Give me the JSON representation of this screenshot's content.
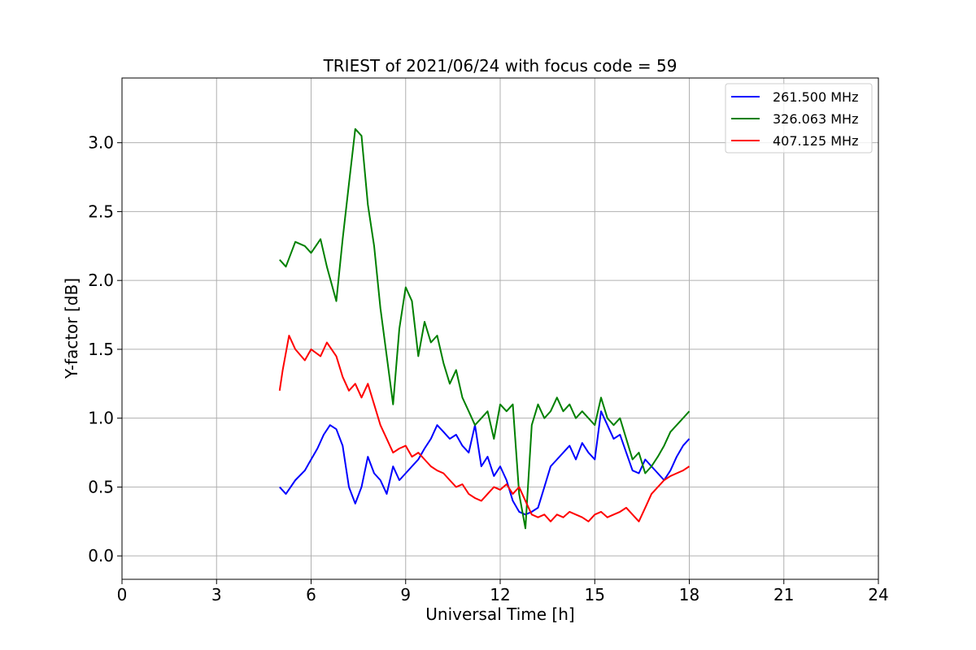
{
  "chart_data": {
    "type": "line",
    "title": "TRIEST of 2021/06/24 with focus code = 59",
    "xlabel": "Universal Time [h]",
    "ylabel": "Y-factor [dB]",
    "xlim": [
      0,
      24
    ],
    "ylim": [
      -0.17,
      3.47
    ],
    "xticks": [
      0,
      3,
      6,
      9,
      12,
      15,
      18,
      21,
      24
    ],
    "xtick_labels": [
      "0",
      "3",
      "6",
      "9",
      "12",
      "15",
      "18",
      "21",
      "24"
    ],
    "yticks": [
      0.0,
      0.5,
      1.0,
      1.5,
      2.0,
      2.5,
      3.0
    ],
    "ytick_labels": [
      "0.0",
      "0.5",
      "1.0",
      "1.5",
      "2.0",
      "2.5",
      "3.0"
    ],
    "grid": true,
    "legend_position": "top-right",
    "series": [
      {
        "name": "261.500 MHz",
        "color": "#0000ff",
        "x": [
          5.0,
          5.2,
          5.5,
          5.8,
          6.0,
          6.2,
          6.4,
          6.6,
          6.8,
          7.0,
          7.2,
          7.4,
          7.6,
          7.8,
          8.0,
          8.2,
          8.4,
          8.6,
          8.8,
          9.0,
          9.2,
          9.4,
          9.6,
          9.8,
          10.0,
          10.2,
          10.4,
          10.6,
          10.8,
          11.0,
          11.2,
          11.4,
          11.6,
          11.8,
          12.0,
          12.2,
          12.4,
          12.6,
          12.8,
          13.0,
          13.2,
          13.4,
          13.6,
          13.8,
          14.0,
          14.2,
          14.4,
          14.6,
          14.8,
          15.0,
          15.2,
          15.4,
          15.6,
          15.8,
          16.0,
          16.2,
          16.4,
          16.6,
          16.8,
          17.0,
          17.2,
          17.4,
          17.6,
          17.8,
          18.0
        ],
        "y": [
          0.5,
          0.45,
          0.55,
          0.62,
          0.7,
          0.78,
          0.88,
          0.95,
          0.92,
          0.8,
          0.5,
          0.38,
          0.5,
          0.72,
          0.6,
          0.55,
          0.45,
          0.65,
          0.55,
          0.6,
          0.65,
          0.7,
          0.78,
          0.85,
          0.95,
          0.9,
          0.85,
          0.88,
          0.8,
          0.75,
          0.95,
          0.65,
          0.72,
          0.58,
          0.65,
          0.55,
          0.4,
          0.32,
          0.3,
          0.32,
          0.35,
          0.5,
          0.65,
          0.7,
          0.75,
          0.8,
          0.7,
          0.82,
          0.75,
          0.7,
          1.05,
          0.95,
          0.85,
          0.88,
          0.75,
          0.62,
          0.6,
          0.7,
          0.65,
          0.6,
          0.55,
          0.62,
          0.72,
          0.8,
          0.85
        ]
      },
      {
        "name": "326.063 MHz",
        "color": "#008000",
        "x": [
          5.0,
          5.2,
          5.5,
          5.8,
          6.0,
          6.3,
          6.5,
          6.8,
          7.0,
          7.2,
          7.4,
          7.6,
          7.8,
          8.0,
          8.2,
          8.4,
          8.6,
          8.8,
          9.0,
          9.2,
          9.4,
          9.6,
          9.8,
          10.0,
          10.2,
          10.4,
          10.6,
          10.8,
          11.0,
          11.2,
          11.4,
          11.6,
          11.8,
          12.0,
          12.2,
          12.4,
          12.6,
          12.8,
          13.0,
          13.2,
          13.4,
          13.6,
          13.8,
          14.0,
          14.2,
          14.4,
          14.6,
          14.8,
          15.0,
          15.2,
          15.4,
          15.6,
          15.8,
          16.0,
          16.2,
          16.4,
          16.6,
          16.8,
          17.0,
          17.2,
          17.4,
          17.6,
          17.8,
          18.0
        ],
        "y": [
          2.15,
          2.1,
          2.28,
          2.25,
          2.2,
          2.3,
          2.1,
          1.85,
          2.3,
          2.7,
          3.1,
          3.05,
          2.55,
          2.25,
          1.8,
          1.45,
          1.1,
          1.65,
          1.95,
          1.85,
          1.45,
          1.7,
          1.55,
          1.6,
          1.4,
          1.25,
          1.35,
          1.15,
          1.05,
          0.95,
          1.0,
          1.05,
          0.85,
          1.1,
          1.05,
          1.1,
          0.45,
          0.2,
          0.95,
          1.1,
          1.0,
          1.05,
          1.15,
          1.05,
          1.1,
          1.0,
          1.05,
          1.0,
          0.95,
          1.15,
          1.0,
          0.95,
          1.0,
          0.85,
          0.7,
          0.75,
          0.6,
          0.65,
          0.72,
          0.8,
          0.9,
          0.95,
          1.0,
          1.05
        ]
      },
      {
        "name": "407.125 MHz",
        "color": "#ff0000",
        "x": [
          5.0,
          5.1,
          5.3,
          5.5,
          5.8,
          6.0,
          6.3,
          6.5,
          6.8,
          7.0,
          7.2,
          7.4,
          7.6,
          7.8,
          8.0,
          8.2,
          8.4,
          8.6,
          8.8,
          9.0,
          9.2,
          9.4,
          9.6,
          9.8,
          10.0,
          10.2,
          10.4,
          10.6,
          10.8,
          11.0,
          11.2,
          11.4,
          11.6,
          11.8,
          12.0,
          12.2,
          12.4,
          12.6,
          12.8,
          13.0,
          13.2,
          13.4,
          13.6,
          13.8,
          14.0,
          14.2,
          14.4,
          14.6,
          14.8,
          15.0,
          15.2,
          15.4,
          15.6,
          15.8,
          16.0,
          16.2,
          16.4,
          16.6,
          16.8,
          17.0,
          17.2,
          17.4,
          17.6,
          17.8,
          18.0
        ],
        "y": [
          1.2,
          1.35,
          1.6,
          1.5,
          1.42,
          1.5,
          1.45,
          1.55,
          1.45,
          1.3,
          1.2,
          1.25,
          1.15,
          1.25,
          1.1,
          0.95,
          0.85,
          0.75,
          0.78,
          0.8,
          0.72,
          0.75,
          0.7,
          0.65,
          0.62,
          0.6,
          0.55,
          0.5,
          0.52,
          0.45,
          0.42,
          0.4,
          0.45,
          0.5,
          0.48,
          0.52,
          0.45,
          0.5,
          0.4,
          0.3,
          0.28,
          0.3,
          0.25,
          0.3,
          0.28,
          0.32,
          0.3,
          0.28,
          0.25,
          0.3,
          0.32,
          0.28,
          0.3,
          0.32,
          0.35,
          0.3,
          0.25,
          0.35,
          0.45,
          0.5,
          0.55,
          0.58,
          0.6,
          0.62,
          0.65
        ]
      }
    ]
  }
}
